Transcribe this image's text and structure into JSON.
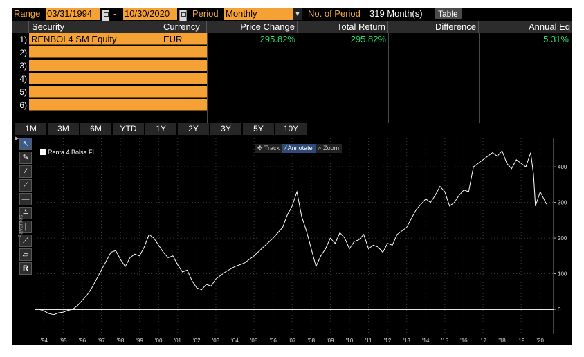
{
  "range_bar": {
    "range_label": "Range",
    "start_date": "03/31/1994",
    "separator": "-",
    "end_date": "10/30/2020",
    "period_label": "Period",
    "period_value": "Monthly",
    "num_period_label": "No. of Period",
    "num_period_value": "319 Month(s)",
    "table_button": "Table"
  },
  "table": {
    "headers": {
      "security": "Security",
      "currency": "Currency",
      "price_change": "Price Change",
      "total_return": "Total Return",
      "difference": "Difference",
      "annual_eq": "Annual Eq"
    },
    "rows": [
      {
        "num": "1)",
        "security": "RENBOL4 SM Equity",
        "currency": "EUR",
        "price_change": "295.82%",
        "total_return": "295.82%",
        "difference": "",
        "annual_eq": "5.31%"
      },
      {
        "num": "2)",
        "security": "",
        "currency": ""
      },
      {
        "num": "3)",
        "security": "",
        "currency": ""
      },
      {
        "num": "4)",
        "security": "",
        "currency": ""
      },
      {
        "num": "5)",
        "security": "",
        "currency": ""
      },
      {
        "num": "6)",
        "security": "",
        "currency": ""
      }
    ],
    "value_color": "#22e06b"
  },
  "period_tabs": [
    "1M",
    "3M",
    "6M",
    "YTD",
    "1Y",
    "2Y",
    "3Y",
    "5Y",
    "10Y"
  ],
  "chart_modes": {
    "track": "Track",
    "annotate": "Annotate",
    "zoom": "Zoom"
  },
  "toolbar": {
    "favorites_label": "Favorites",
    "tool_r_label": "R"
  },
  "chart_data": {
    "type": "line",
    "series": [
      {
        "name": "Renta 4 Bolsa FI",
        "color": "#ffffff",
        "x": [
          1994.25,
          1994.5,
          1994.75,
          1995.0,
          1995.25,
          1995.5,
          1995.75,
          1996.0,
          1996.25,
          1996.5,
          1996.75,
          1997.0,
          1997.25,
          1997.5,
          1997.75,
          1998.0,
          1998.25,
          1998.5,
          1998.75,
          1999.0,
          1999.25,
          1999.5,
          1999.75,
          2000.0,
          2000.25,
          2000.5,
          2000.75,
          2001.0,
          2001.25,
          2001.5,
          2001.75,
          2002.0,
          2002.25,
          2002.5,
          2002.75,
          2003.0,
          2003.25,
          2003.5,
          2003.75,
          2004.0,
          2004.5,
          2005.0,
          2005.5,
          2006.0,
          2006.5,
          2007.0,
          2007.25,
          2007.5,
          2007.75,
          2008.0,
          2008.25,
          2008.5,
          2008.75,
          2009.0,
          2009.25,
          2009.5,
          2009.75,
          2010.0,
          2010.25,
          2010.5,
          2010.75,
          2011.0,
          2011.25,
          2011.5,
          2011.75,
          2012.0,
          2012.25,
          2012.5,
          2012.75,
          2013.0,
          2013.5,
          2014.0,
          2014.25,
          2014.5,
          2014.75,
          2015.0,
          2015.25,
          2015.5,
          2015.75,
          2016.0,
          2016.25,
          2016.5,
          2016.75,
          2017.0,
          2017.25,
          2017.5,
          2017.75,
          2018.0,
          2018.25,
          2018.5,
          2018.75,
          2019.0,
          2019.25,
          2019.5,
          2019.75,
          2020.0,
          2020.15,
          2020.25,
          2020.5,
          2020.83
        ],
        "y": [
          0,
          -5,
          -12,
          -15,
          -10,
          -8,
          -3,
          0,
          10,
          25,
          40,
          60,
          85,
          110,
          135,
          160,
          165,
          140,
          120,
          145,
          155,
          150,
          175,
          210,
          200,
          180,
          160,
          145,
          150,
          125,
          105,
          110,
          80,
          60,
          55,
          70,
          65,
          85,
          95,
          105,
          120,
          130,
          150,
          175,
          200,
          230,
          265,
          290,
          330,
          260,
          220,
          170,
          120,
          150,
          170,
          200,
          185,
          215,
          200,
          170,
          190,
          195,
          210,
          170,
          180,
          175,
          160,
          185,
          180,
          210,
          230,
          280,
          295,
          310,
          300,
          320,
          345,
          330,
          290,
          300,
          320,
          335,
          330,
          400,
          410,
          420,
          430,
          440,
          430,
          445,
          410,
          395,
          420,
          410,
          400,
          440,
          380,
          290,
          330,
          295
        ]
      }
    ],
    "x_tick_labels": [
      "'94",
      "'95",
      "'96",
      "'97",
      "'98",
      "'99",
      "'00",
      "'01",
      "'02",
      "'03",
      "'04",
      "'05",
      "'06",
      "'07",
      "'08",
      "'09",
      "'10",
      "'11",
      "'12",
      "'13",
      "'14",
      "'15",
      "'16",
      "'17",
      "'18",
      "'19",
      "'20"
    ],
    "y_ticks": [
      0,
      100,
      200,
      300,
      400
    ],
    "ylim": [
      -70,
      480
    ],
    "xlim": [
      1994.0,
      2021.2
    ],
    "grid": true,
    "zero_line": true,
    "legend_placement": "top-left"
  }
}
